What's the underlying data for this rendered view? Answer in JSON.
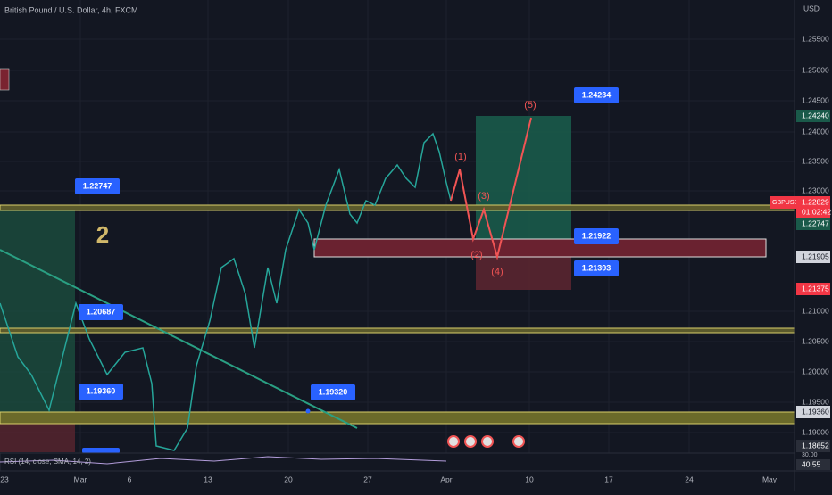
{
  "header": {
    "title": "British Pound / U.S. Dollar, 4h, FXCM"
  },
  "price_axis": {
    "currency": "USD",
    "labels": [
      "1.25500",
      "1.25000",
      "1.24500",
      "1.24000",
      "1.23500",
      "1.23000",
      "1.21000",
      "1.20500",
      "1.20000",
      "1.19500",
      "1.19000"
    ],
    "highlights": [
      "1.24240",
      "GBPUSD",
      "1.22829",
      "01:02:42",
      "1.22747",
      "1.21905",
      "1.21375",
      "1.19360",
      "1.18652",
      "30.00",
      "40.55"
    ]
  },
  "time_axis": {
    "labels": [
      "23",
      "Mar",
      "6",
      "13",
      "20",
      "27",
      "Apr",
      "10",
      "17",
      "24",
      "May"
    ]
  },
  "callouts": [
    "1.22747",
    "1.20687",
    "1.19360",
    "1.19320",
    "1.24234",
    "1.21922",
    "1.21393"
  ],
  "wave_labels": [
    "(1)",
    "(2)",
    "(3)",
    "(4)",
    "(5)"
  ],
  "annotation": "2",
  "indicator": "RSI (14, close, SMA, 14, 2)"
}
